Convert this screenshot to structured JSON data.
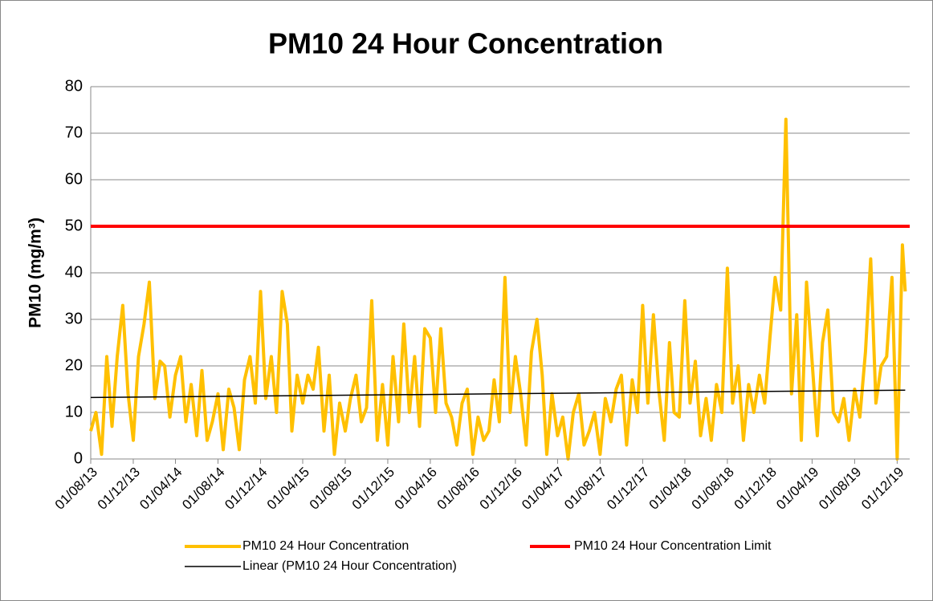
{
  "chart_data": {
    "type": "line",
    "title": "PM10 24 Hour Concentration",
    "y_label": "PM10 (mg/m³)",
    "xlim": [
      "01/08/13",
      "06/01/20"
    ],
    "xticks": [
      "01/08/13",
      "01/12/13",
      "01/04/14",
      "01/08/14",
      "01/12/14",
      "01/04/15",
      "01/08/15",
      "01/12/15",
      "01/04/16",
      "01/08/16",
      "01/12/16",
      "01/04/17",
      "01/08/17",
      "01/12/17",
      "01/04/18",
      "01/08/18",
      "01/12/18",
      "01/04/19",
      "01/08/19",
      "01/12/19"
    ],
    "ylim": [
      0,
      80
    ],
    "yticks": [
      0,
      10,
      20,
      30,
      40,
      50,
      60,
      70,
      80
    ],
    "grid": true,
    "legend": "bottom",
    "series": [
      {
        "name": "PM10 24 Hour Concentration",
        "color": "#ffc000",
        "x": [
          "01/08/13",
          "16/08/13",
          "01/09/13",
          "16/09/13",
          "01/10/13",
          "16/10/13",
          "01/11/13",
          "16/11/13",
          "01/12/13",
          "16/12/13",
          "01/01/14",
          "16/01/14",
          "01/02/14",
          "16/02/14",
          "01/03/14",
          "16/03/14",
          "01/04/14",
          "16/04/14",
          "01/05/14",
          "16/05/14",
          "01/06/14",
          "16/06/14",
          "01/07/14",
          "16/07/14",
          "01/08/14",
          "16/08/14",
          "01/09/14",
          "16/09/14",
          "01/10/14",
          "16/10/14",
          "01/11/14",
          "16/11/14",
          "01/12/14",
          "16/12/14",
          "01/01/15",
          "16/01/15",
          "01/02/15",
          "16/02/15",
          "01/03/15",
          "16/03/15",
          "01/04/15",
          "16/04/15",
          "01/05/15",
          "16/05/15",
          "01/06/15",
          "16/06/15",
          "01/07/15",
          "16/07/15",
          "01/08/15",
          "16/08/15",
          "01/09/15",
          "16/09/15",
          "01/10/15",
          "16/10/15",
          "01/11/15",
          "16/11/15",
          "01/12/15",
          "16/12/15",
          "01/01/16",
          "16/01/16",
          "01/02/16",
          "16/02/16",
          "01/03/16",
          "16/03/16",
          "01/04/16",
          "16/04/16",
          "01/05/16",
          "16/05/16",
          "01/06/16",
          "16/06/16",
          "01/07/16",
          "16/07/16",
          "01/08/16",
          "16/08/16",
          "01/09/16",
          "16/09/16",
          "01/10/16",
          "16/10/16",
          "01/11/16",
          "16/11/16",
          "01/12/16",
          "16/12/16",
          "01/01/17",
          "16/01/17",
          "01/02/17",
          "16/02/17",
          "01/03/17",
          "16/03/17",
          "01/04/17",
          "16/04/17",
          "01/05/17",
          "16/05/17",
          "01/06/17",
          "16/06/17",
          "01/07/17",
          "16/07/17",
          "01/08/17",
          "16/08/17",
          "01/09/17",
          "16/09/17",
          "01/10/17",
          "16/10/17",
          "01/11/17",
          "16/11/17",
          "01/12/17",
          "16/12/17",
          "01/01/18",
          "16/01/18",
          "01/02/18",
          "16/02/18",
          "01/03/18",
          "16/03/18",
          "01/04/18",
          "16/04/18",
          "01/05/18",
          "16/05/18",
          "01/06/18",
          "16/06/18",
          "01/07/18",
          "16/07/18",
          "01/08/18",
          "16/08/18",
          "01/09/18",
          "16/09/18",
          "01/10/18",
          "16/10/18",
          "01/11/18",
          "16/11/18",
          "01/12/18",
          "16/12/18",
          "01/01/19",
          "16/01/19",
          "01/02/19",
          "16/02/19",
          "01/03/19",
          "16/03/19",
          "01/04/19",
          "16/04/19",
          "01/05/19",
          "16/05/19",
          "01/06/19",
          "16/06/19",
          "01/07/19",
          "16/07/19",
          "01/08/19",
          "16/08/19",
          "01/09/19",
          "16/09/19",
          "01/10/19",
          "16/10/19",
          "01/11/19",
          "16/11/19",
          "01/12/19",
          "16/12/19",
          "24/12/19"
        ],
        "values": [
          6,
          10,
          1,
          22,
          7,
          22,
          33,
          14,
          4,
          22,
          29,
          38,
          13,
          21,
          20,
          9,
          18,
          22,
          8,
          16,
          5,
          19,
          4,
          8,
          14,
          2,
          15,
          11,
          2,
          17,
          22,
          12,
          36,
          13,
          22,
          10,
          36,
          29,
          6,
          18,
          12,
          18,
          15,
          24,
          6,
          18,
          1,
          12,
          6,
          13,
          18,
          8,
          11,
          34,
          4,
          16,
          3,
          22,
          8,
          29,
          10,
          22,
          7,
          28,
          26,
          10,
          28,
          12,
          9,
          3,
          12,
          15,
          1,
          9,
          4,
          6,
          17,
          8,
          39,
          10,
          22,
          14,
          3,
          23,
          30,
          18,
          1,
          14,
          5,
          9,
          0,
          10,
          14,
          3,
          6,
          10,
          1,
          13,
          8,
          15,
          18,
          3,
          17,
          10,
          33,
          12,
          31,
          15,
          4,
          25,
          10,
          9,
          34,
          12,
          21,
          5,
          13,
          4,
          16,
          10,
          41,
          12,
          20,
          4,
          16,
          10,
          18,
          12,
          26,
          39,
          32,
          73,
          14,
          31,
          4,
          38,
          21,
          5,
          25,
          32,
          10,
          8,
          13,
          4,
          15,
          9,
          23,
          43,
          12,
          20,
          22,
          39,
          0,
          46,
          36
        ]
      },
      {
        "name": "PM10 24 Hour  Concentration Limit",
        "color": "#ff0000",
        "x": [
          "01/08/13",
          "06/01/20"
        ],
        "values": [
          50,
          50
        ]
      },
      {
        "name": "Linear (PM10 24 Hour Concentration)",
        "color": "#000000",
        "x": [
          "01/08/13",
          "24/12/19"
        ],
        "values": [
          13.2,
          14.8
        ]
      }
    ]
  }
}
